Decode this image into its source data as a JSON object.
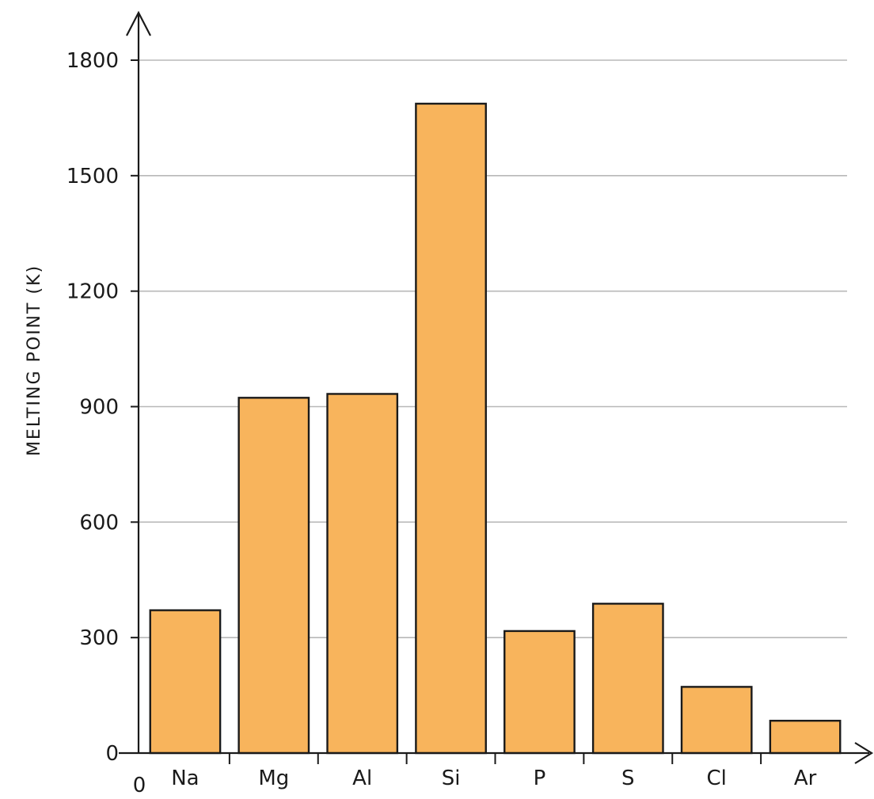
{
  "chart_data": {
    "type": "bar",
    "categories": [
      "Na",
      "Mg",
      "Al",
      "Si",
      "P",
      "S",
      "Cl",
      "Ar"
    ],
    "values": [
      371,
      923,
      933,
      1687,
      317,
      388,
      172,
      84
    ],
    "title": "",
    "xlabel": "",
    "ylabel": "MELTING POINT (K)",
    "ylim": [
      0,
      1800
    ],
    "yticks": [
      0,
      300,
      600,
      900,
      1200,
      1500,
      1800
    ],
    "ytick_labels": [
      "0",
      "300",
      "600",
      "900",
      "1200",
      "1500",
      "1800"
    ],
    "origin_label": "0",
    "grid": true,
    "bar_color": "#f8b45c",
    "bar_edge_color": "#1a1a1a",
    "grid_color": "#b8b8b8"
  }
}
